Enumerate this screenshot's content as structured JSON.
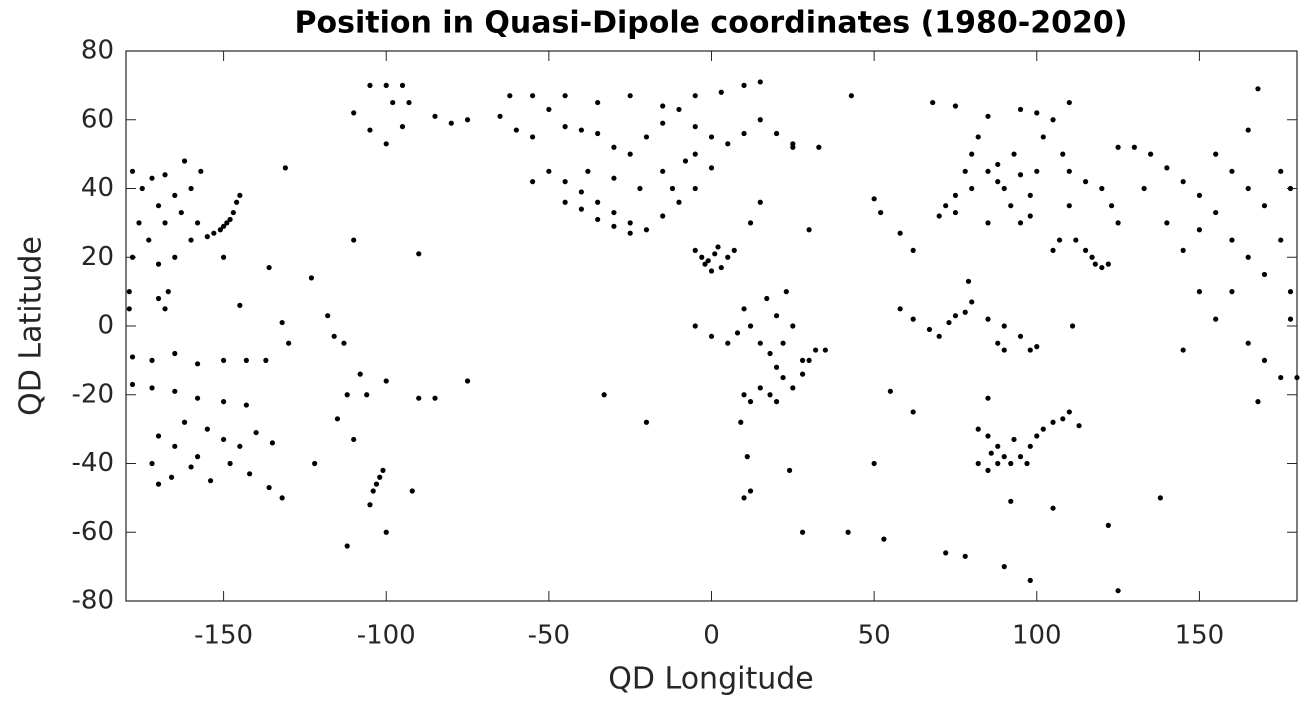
{
  "chart_data": {
    "type": "scatter",
    "title": "Position in Quasi-Dipole coordinates (1980-2020)",
    "x_label": "QD Longitude",
    "y_label": "QD Latitude",
    "color": "#000000",
    "xlim": [
      -180,
      180
    ],
    "xticks": [
      -150,
      -100,
      -50,
      0,
      50,
      100,
      150
    ],
    "ylim": [
      -80,
      80
    ],
    "yticks": [
      -80,
      -60,
      -40,
      -20,
      0,
      20,
      40,
      60,
      80
    ],
    "x": [
      -178,
      -175,
      -172,
      -168,
      -165,
      -170,
      -176,
      -173,
      -168,
      -163,
      -160,
      -157,
      -162,
      -178,
      -170,
      -165,
      -160,
      -158,
      -155,
      -153,
      -151,
      -149,
      -147,
      -146,
      -145,
      -150,
      -148,
      -170,
      -168,
      -167,
      -179,
      -179,
      -150,
      -145,
      -136,
      -132,
      -131,
      -178,
      -172,
      -165,
      -158,
      -150,
      -143,
      -137,
      -178,
      -172,
      -165,
      -158,
      -150,
      -143,
      -170,
      -165,
      -158,
      -150,
      -145,
      -140,
      -135,
      -172,
      -166,
      -160,
      -154,
      -148,
      -142,
      -136,
      -132,
      -170,
      -162,
      -155,
      -130,
      -123,
      -122,
      -118,
      -116,
      -115,
      -112,
      -110,
      -113,
      -112,
      -105,
      -104,
      -102,
      -101,
      -103,
      -100,
      -92,
      -90,
      -100,
      -106,
      -108,
      -110,
      -105,
      -100,
      -95,
      -98,
      -93,
      -110,
      -105,
      -100,
      -95,
      -90,
      -85,
      -75,
      -75,
      -80,
      -85,
      -65,
      -60,
      -55,
      -50,
      -45,
      -40,
      -35,
      -30,
      -25,
      -20,
      -15,
      -10,
      -5,
      0,
      5,
      10,
      15,
      20,
      25,
      -62,
      -55,
      -45,
      -35,
      -25,
      -15,
      -5,
      3,
      10,
      15,
      -50,
      -45,
      -40,
      -35,
      -30,
      -25,
      -20,
      -15,
      -10,
      -5,
      -45,
      -40,
      -35,
      -30,
      -25,
      -55,
      -38,
      -30,
      -22,
      -15,
      -8,
      -5,
      0,
      -12,
      -5,
      -3,
      -2,
      0,
      1,
      2,
      -1,
      3,
      5,
      7,
      10,
      12,
      15,
      18,
      20,
      22,
      25,
      28,
      30,
      32,
      15,
      12,
      18,
      22,
      25,
      20,
      23,
      17,
      8,
      5,
      -5,
      0,
      10,
      9,
      11,
      10,
      12,
      20,
      28,
      35,
      24,
      28,
      30,
      33,
      25,
      15,
      -33,
      12,
      -20,
      70,
      72,
      75,
      75,
      78,
      80,
      82,
      85,
      88,
      90,
      92,
      95,
      98,
      100,
      85,
      88,
      93,
      95,
      80,
      98,
      102,
      105,
      110,
      100,
      108,
      110,
      110,
      115,
      120,
      68,
      75,
      85,
      95,
      43,
      50,
      52,
      58,
      62,
      79,
      112,
      115,
      118,
      120,
      122,
      117,
      105,
      107,
      58,
      62,
      67,
      70,
      73,
      75,
      78,
      80,
      85,
      90,
      88,
      95,
      98,
      100,
      90,
      111,
      82,
      85,
      88,
      90,
      92,
      95,
      98,
      100,
      102,
      105,
      108,
      110,
      82,
      85,
      88,
      93,
      97,
      86,
      113,
      55,
      62,
      50,
      42,
      53,
      72,
      78,
      90,
      98,
      105,
      122,
      125,
      92,
      85,
      138,
      135,
      140,
      145,
      150,
      155,
      160,
      165,
      170,
      175,
      178,
      140,
      145,
      150,
      155,
      160,
      165,
      170,
      175,
      178,
      178,
      155,
      160,
      150,
      145,
      165,
      170,
      175,
      180,
      168,
      130,
      123,
      125,
      133,
      165,
      168,
      125
    ],
    "values": [
      45,
      40,
      43,
      44,
      38,
      35,
      30,
      25,
      30,
      33,
      40,
      45,
      48,
      20,
      18,
      20,
      25,
      30,
      26,
      27,
      28,
      30,
      33,
      36,
      38,
      29,
      31,
      8,
      5,
      10,
      5,
      10,
      20,
      6,
      17,
      1,
      46,
      -9,
      -10,
      -8,
      -11,
      -10,
      -10,
      -10,
      -17,
      -18,
      -19,
      -21,
      -22,
      -23,
      -32,
      -35,
      -38,
      -33,
      -35,
      -31,
      -34,
      -40,
      -44,
      -41,
      -45,
      -40,
      -43,
      -47,
      -50,
      -46,
      -28,
      -30,
      -5,
      14,
      -40,
      3,
      -3,
      -27,
      -20,
      -33,
      -5,
      -64,
      -52,
      -48,
      -44,
      -42,
      -46,
      -60,
      -48,
      -21,
      -16,
      -20,
      -14,
      25,
      70,
      70,
      70,
      65,
      65,
      62,
      57,
      53,
      58,
      21,
      -21,
      -16,
      60,
      59,
      61,
      61,
      57,
      55,
      63,
      58,
      57,
      56,
      52,
      50,
      55,
      59,
      63,
      58,
      55,
      53,
      56,
      60,
      56,
      53,
      67,
      67,
      67,
      65,
      67,
      64,
      67,
      68,
      70,
      71,
      45,
      42,
      39,
      36,
      33,
      30,
      28,
      32,
      36,
      40,
      36,
      34,
      31,
      29,
      27,
      42,
      45,
      43,
      40,
      45,
      48,
      50,
      46,
      40,
      22,
      20,
      18,
      16,
      21,
      23,
      19,
      17,
      20,
      22,
      5,
      0,
      -5,
      -8,
      -12,
      -15,
      -18,
      -14,
      -10,
      -7,
      -18,
      -22,
      -20,
      -5,
      0,
      3,
      10,
      8,
      -2,
      -5,
      0,
      -3,
      -20,
      -28,
      -38,
      -50,
      -48,
      -22,
      -10,
      -7,
      -42,
      -60,
      28,
      52,
      52,
      36,
      -20,
      30,
      -28,
      32,
      35,
      38,
      33,
      45,
      50,
      55,
      45,
      42,
      40,
      35,
      30,
      38,
      45,
      30,
      47,
      50,
      44,
      40,
      32,
      55,
      60,
      65,
      62,
      50,
      35,
      45,
      42,
      40,
      65,
      64,
      61,
      63,
      67,
      37,
      33,
      27,
      22,
      13,
      25,
      22,
      18,
      17,
      18,
      20,
      22,
      25,
      5,
      2,
      -1,
      -3,
      1,
      3,
      4,
      7,
      2,
      0,
      -5,
      -3,
      -7,
      -6,
      -7,
      0,
      -30,
      -32,
      -35,
      -38,
      -40,
      -38,
      -35,
      -32,
      -30,
      -28,
      -27,
      -25,
      -40,
      -42,
      -40,
      -33,
      -40,
      -37,
      -29,
      -19,
      -25,
      -40,
      -60,
      -62,
      -66,
      -67,
      -70,
      -74,
      -53,
      -58,
      -77,
      -51,
      -21,
      -50,
      50,
      46,
      42,
      38,
      50,
      45,
      40,
      35,
      45,
      40,
      30,
      22,
      28,
      33,
      25,
      20,
      15,
      25,
      10,
      2,
      2,
      10,
      10,
      -7,
      -5,
      -10,
      -15,
      -15,
      -22,
      52,
      35,
      30,
      40,
      57,
      69,
      52
    ]
  }
}
